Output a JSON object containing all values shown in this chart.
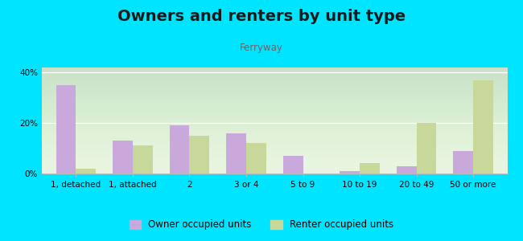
{
  "categories": [
    "1, detached",
    "1, attached",
    "2",
    "3 or 4",
    "5 to 9",
    "10 to 19",
    "20 to 49",
    "50 or more"
  ],
  "owner_values": [
    35,
    13,
    19,
    16,
    7,
    1,
    3,
    9
  ],
  "renter_values": [
    2,
    11,
    15,
    12,
    0,
    4,
    20,
    37
  ],
  "owner_color": "#c9a8dc",
  "renter_color": "#c8d89a",
  "title": "Owners and renters by unit type",
  "subtitle": "Ferryway",
  "ylim": [
    0,
    42
  ],
  "yticks": [
    0,
    20,
    40
  ],
  "ytick_labels": [
    "0%",
    "20%",
    "40%"
  ],
  "plot_bg_top": "#e8f5e0",
  "plot_bg_bottom": "#f8fff4",
  "outer_background": "#00e5ff",
  "legend_owner": "Owner occupied units",
  "legend_renter": "Renter occupied units",
  "bar_width": 0.35,
  "title_fontsize": 14,
  "subtitle_fontsize": 8.5,
  "tick_fontsize": 7.5,
  "legend_fontsize": 8.5
}
